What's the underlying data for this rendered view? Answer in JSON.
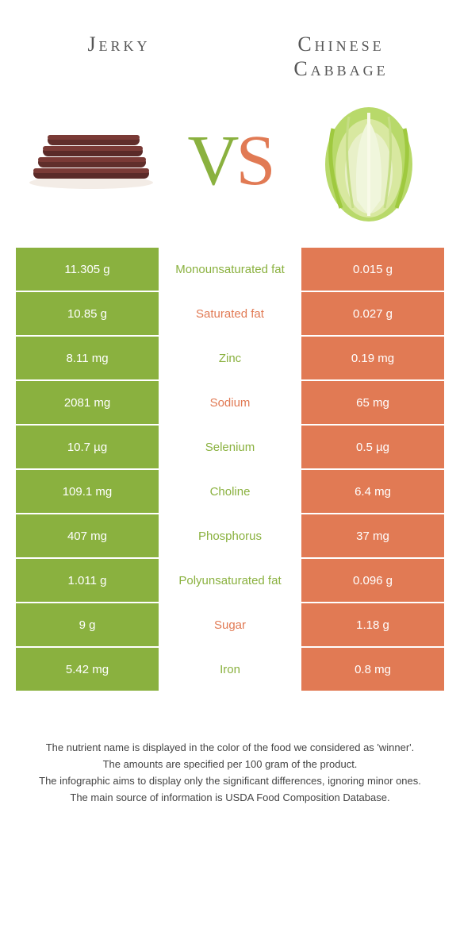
{
  "left_food": {
    "title": "Jerky"
  },
  "right_food": {
    "title": "Chinese\nCabbage"
  },
  "vs": {
    "v": "V",
    "s": "S"
  },
  "colors": {
    "green": "#8ab13f",
    "orange": "#e17a54",
    "jerky_dark": "#5a2a28",
    "jerky_light": "#7a3a36",
    "cabbage_outer": "#b8d96a",
    "cabbage_inner": "#e8f0c8",
    "cabbage_leaf": "#9fc93f"
  },
  "rows": [
    {
      "left": "11.305 g",
      "label": "Monounsaturated fat",
      "right": "0.015 g",
      "winner": "left"
    },
    {
      "left": "10.85 g",
      "label": "Saturated fat",
      "right": "0.027 g",
      "winner": "right"
    },
    {
      "left": "8.11 mg",
      "label": "Zinc",
      "right": "0.19 mg",
      "winner": "left"
    },
    {
      "left": "2081 mg",
      "label": "Sodium",
      "right": "65 mg",
      "winner": "right"
    },
    {
      "left": "10.7 µg",
      "label": "Selenium",
      "right": "0.5 µg",
      "winner": "left"
    },
    {
      "left": "109.1 mg",
      "label": "Choline",
      "right": "6.4 mg",
      "winner": "left"
    },
    {
      "left": "407 mg",
      "label": "Phosphorus",
      "right": "37 mg",
      "winner": "left"
    },
    {
      "left": "1.011 g",
      "label": "Polyunsaturated fat",
      "right": "0.096 g",
      "winner": "left"
    },
    {
      "left": "9 g",
      "label": "Sugar",
      "right": "1.18 g",
      "winner": "right"
    },
    {
      "left": "5.42 mg",
      "label": "Iron",
      "right": "0.8 mg",
      "winner": "left"
    }
  ],
  "footer": {
    "line1": "The nutrient name is displayed in the color of the food we considered as 'winner'.",
    "line2": "The amounts are specified per 100 gram of the product.",
    "line3": "The infographic aims to display only the significant differences, ignoring minor ones.",
    "line4": "The main source of information is USDA Food Composition Database."
  }
}
